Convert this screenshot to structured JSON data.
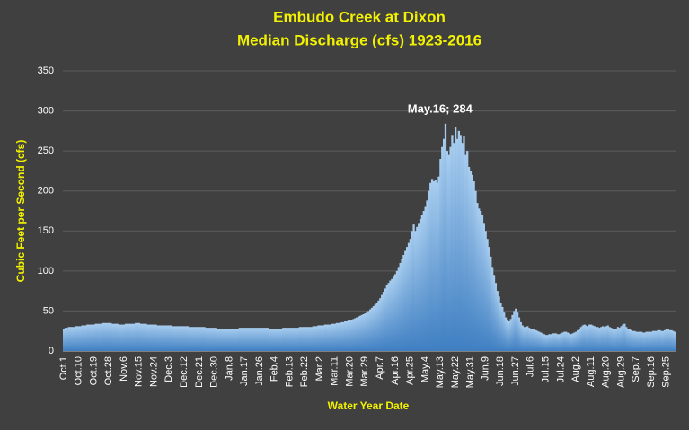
{
  "chart_data": {
    "type": "bar",
    "title": "Embudo Creek at Dixon",
    "subtitle": "Median Discharge (cfs) 1923-2016",
    "x_label": "Water Year Date",
    "y_label": "Cubic Feet per Second (cfs)",
    "annotation": {
      "text": "May.16; 284",
      "index": 228
    },
    "color": "#5b9bd5",
    "ylim": [
      0,
      350
    ],
    "yticks": [
      0,
      50,
      100,
      150,
      200,
      250,
      300,
      350
    ],
    "grid": true,
    "categories": [
      "Oct.1",
      null,
      null,
      null,
      null,
      null,
      null,
      null,
      null,
      "Oct.10",
      null,
      null,
      null,
      null,
      null,
      null,
      null,
      null,
      "Oct.19",
      null,
      null,
      null,
      null,
      null,
      null,
      null,
      null,
      "Oct.28",
      null,
      null,
      null,
      null,
      null,
      null,
      null,
      null,
      "Nov.6",
      null,
      null,
      null,
      null,
      null,
      null,
      null,
      null,
      "Nov.15",
      null,
      null,
      null,
      null,
      null,
      null,
      null,
      null,
      "Nov.24",
      null,
      null,
      null,
      null,
      null,
      null,
      null,
      null,
      "Dec.3",
      null,
      null,
      null,
      null,
      null,
      null,
      null,
      null,
      "Dec.12",
      null,
      null,
      null,
      null,
      null,
      null,
      null,
      null,
      "Dec.21",
      null,
      null,
      null,
      null,
      null,
      null,
      null,
      null,
      "Dec.30",
      null,
      null,
      null,
      null,
      null,
      null,
      null,
      null,
      "Jan.8",
      null,
      null,
      null,
      null,
      null,
      null,
      null,
      null,
      "Jan.17",
      null,
      null,
      null,
      null,
      null,
      null,
      null,
      null,
      "Jan.26",
      null,
      null,
      null,
      null,
      null,
      null,
      null,
      null,
      "Feb.4",
      null,
      null,
      null,
      null,
      null,
      null,
      null,
      null,
      "Feb.13",
      null,
      null,
      null,
      null,
      null,
      null,
      null,
      null,
      "Feb.22",
      null,
      null,
      null,
      null,
      null,
      null,
      null,
      null,
      "Mar.2",
      null,
      null,
      null,
      null,
      null,
      null,
      null,
      null,
      "Mar.11",
      null,
      null,
      null,
      null,
      null,
      null,
      null,
      null,
      "Mar.20",
      null,
      null,
      null,
      null,
      null,
      null,
      null,
      null,
      "Mar.29",
      null,
      null,
      null,
      null,
      null,
      null,
      null,
      null,
      "Apr.7",
      null,
      null,
      null,
      null,
      null,
      null,
      null,
      null,
      "Apr.16",
      null,
      null,
      null,
      null,
      null,
      null,
      null,
      null,
      "Apr.25",
      null,
      null,
      null,
      null,
      null,
      null,
      null,
      null,
      "May.4",
      null,
      null,
      null,
      null,
      null,
      null,
      null,
      null,
      "May.13",
      null,
      null,
      null,
      null,
      null,
      null,
      null,
      null,
      "May.22",
      null,
      null,
      null,
      null,
      null,
      null,
      null,
      null,
      "May.31",
      null,
      null,
      null,
      null,
      null,
      null,
      null,
      null,
      "Jun.9",
      null,
      null,
      null,
      null,
      null,
      null,
      null,
      null,
      "Jun.18",
      null,
      null,
      null,
      null,
      null,
      null,
      null,
      null,
      "Jun.27",
      null,
      null,
      null,
      null,
      null,
      null,
      null,
      null,
      "Jul.6",
      null,
      null,
      null,
      null,
      null,
      null,
      null,
      null,
      "Jul.15",
      null,
      null,
      null,
      null,
      null,
      null,
      null,
      null,
      "Jul.24",
      null,
      null,
      null,
      null,
      null,
      null,
      null,
      null,
      "Aug.2",
      null,
      null,
      null,
      null,
      null,
      null,
      null,
      null,
      "Aug.11",
      null,
      null,
      null,
      null,
      null,
      null,
      null,
      null,
      "Aug.20",
      null,
      null,
      null,
      null,
      null,
      null,
      null,
      null,
      "Aug.29",
      null,
      null,
      null,
      null,
      null,
      null,
      null,
      null,
      "Sep.7",
      null,
      null,
      null,
      null,
      null,
      null,
      null,
      null,
      "Sep.16",
      null,
      null,
      null,
      null,
      null,
      null,
      null,
      null,
      "Sep.25",
      null,
      null,
      null,
      null,
      null
    ],
    "values": [
      28,
      29,
      29,
      30,
      30,
      30,
      30,
      31,
      31,
      31,
      31,
      32,
      32,
      32,
      33,
      33,
      33,
      33,
      33,
      34,
      34,
      34,
      34,
      35,
      35,
      35,
      35,
      35,
      35,
      34,
      34,
      34,
      34,
      33,
      33,
      33,
      33,
      34,
      34,
      34,
      34,
      34,
      34,
      35,
      35,
      35,
      34,
      34,
      34,
      34,
      33,
      33,
      33,
      33,
      33,
      33,
      32,
      32,
      32,
      32,
      32,
      32,
      32,
      32,
      32,
      31,
      31,
      31,
      31,
      31,
      31,
      31,
      31,
      31,
      31,
      30,
      30,
      30,
      30,
      30,
      30,
      30,
      30,
      30,
      30,
      29,
      29,
      29,
      29,
      29,
      29,
      29,
      28,
      28,
      28,
      28,
      28,
      28,
      28,
      28,
      28,
      28,
      28,
      28,
      28,
      29,
      29,
      29,
      29,
      29,
      29,
      29,
      29,
      29,
      29,
      29,
      29,
      29,
      29,
      29,
      29,
      29,
      29,
      28,
      28,
      28,
      28,
      28,
      28,
      28,
      28,
      29,
      29,
      29,
      29,
      29,
      29,
      29,
      29,
      29,
      29,
      30,
      30,
      30,
      30,
      30,
      30,
      30,
      30,
      31,
      31,
      31,
      32,
      32,
      32,
      32,
      33,
      33,
      33,
      33,
      34,
      34,
      34,
      35,
      35,
      35,
      36,
      36,
      37,
      37,
      38,
      38,
      39,
      40,
      41,
      42,
      43,
      44,
      45,
      46,
      47,
      48,
      50,
      52,
      54,
      56,
      58,
      60,
      63,
      66,
      70,
      74,
      78,
      82,
      85,
      88,
      90,
      93,
      96,
      100,
      105,
      110,
      115,
      120,
      125,
      130,
      135,
      140,
      150,
      158,
      150,
      155,
      160,
      165,
      170,
      175,
      180,
      188,
      200,
      210,
      215,
      212,
      214,
      210,
      218,
      240,
      255,
      265,
      284,
      250,
      245,
      255,
      270,
      260,
      280,
      265,
      275,
      270,
      260,
      268,
      245,
      250,
      230,
      225,
      220,
      212,
      200,
      185,
      178,
      175,
      170,
      160,
      150,
      140,
      130,
      118,
      105,
      95,
      85,
      75,
      68,
      60,
      55,
      48,
      42,
      38,
      37,
      40,
      45,
      50,
      53,
      48,
      42,
      36,
      32,
      30,
      30,
      31,
      29,
      28,
      28,
      27,
      26,
      25,
      24,
      23,
      22,
      21,
      20,
      20,
      21,
      21,
      22,
      22,
      22,
      21,
      21,
      22,
      23,
      24,
      24,
      23,
      22,
      21,
      22,
      23,
      24,
      26,
      28,
      30,
      32,
      33,
      32,
      31,
      33,
      33,
      32,
      31,
      30,
      30,
      29,
      30,
      31,
      30,
      31,
      32,
      30,
      29,
      28,
      27,
      28,
      30,
      29,
      31,
      33,
      34,
      30,
      28,
      27,
      26,
      25,
      25,
      24,
      24,
      24,
      24,
      23,
      23,
      24,
      24,
      24,
      24,
      25,
      25,
      25,
      26,
      26,
      25,
      25,
      26,
      27,
      27,
      26,
      26,
      25,
      24
    ]
  }
}
